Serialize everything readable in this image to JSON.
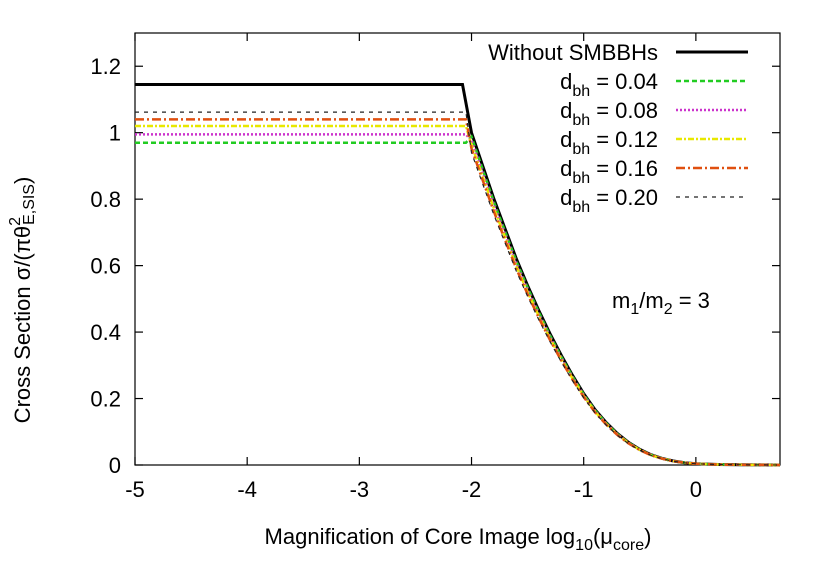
{
  "chart_data": {
    "type": "line",
    "x_axis": {
      "title_main": "Magnification of Core Image log",
      "title_sub": "10",
      "title_paren_open": "(μ",
      "title_sub2": "core",
      "title_paren_close": ")",
      "range": [
        -5,
        0.75
      ],
      "ticks": [
        "-5",
        "-4",
        "-3",
        "-2",
        "-1",
        "0"
      ],
      "tick_values": [
        -5,
        -4,
        -3,
        -2,
        -1,
        0
      ]
    },
    "y_axis": {
      "title_main": "Cross Section σ/(πθ",
      "title_sup": "2",
      "title_sub": "E,SIS",
      "title_close": ")",
      "range": [
        0,
        1.3
      ],
      "ticks": [
        "0",
        "0.2",
        "0.4",
        "0.6",
        "0.8",
        "1",
        "1.2"
      ],
      "tick_values": [
        0,
        0.2,
        0.4,
        0.6,
        0.8,
        1.0,
        1.2
      ]
    },
    "annotation": {
      "text_a": "m",
      "sub_a": "1",
      "text_b": "/m",
      "sub_b": "2",
      "text_c": " = 3"
    },
    "grid": false,
    "legend_position": "top-right",
    "series": [
      {
        "name": "Without SMBBHs",
        "legend_main": "Without SMBBHs",
        "legend_sub": "",
        "legend_value": "",
        "color": "#000000",
        "dash": "",
        "width": 3,
        "plateau": 1.145,
        "break": -2.08
      },
      {
        "name": "d_bh = 0.04",
        "legend_main": "d",
        "legend_sub": "bh",
        "legend_value": " = 0.04",
        "color": "#22cc22",
        "dash": "5,3",
        "width": 2.5,
        "plateau": 0.97,
        "break": -2.05
      },
      {
        "name": "d_bh = 0.08",
        "legend_main": "d",
        "legend_sub": "bh",
        "legend_value": " = 0.08",
        "color": "#cc33cc",
        "dash": "2,2",
        "width": 2.5,
        "plateau": 0.995,
        "break": -2.05
      },
      {
        "name": "d_bh = 0.12",
        "legend_main": "d",
        "legend_sub": "bh",
        "legend_value": " = 0.12",
        "color": "#e8e800",
        "dash": "6,2,2,2",
        "width": 2.5,
        "plateau": 1.02,
        "break": -2.05
      },
      {
        "name": "d_bh = 0.16",
        "legend_main": "d",
        "legend_sub": "bh",
        "legend_value": " = 0.16",
        "color": "#e05010",
        "dash": "9,3,2,3",
        "width": 2.5,
        "plateau": 1.04,
        "break": -2.05
      },
      {
        "name": "d_bh = 0.20",
        "legend_main": "d",
        "legend_sub": "bh",
        "legend_value": " = 0.20",
        "color": "#222222",
        "dash": "4,5",
        "width": 1.2,
        "plateau": 1.062,
        "break": -2.05
      }
    ],
    "decay_curve": {
      "x": [
        -2.0,
        -1.9,
        -1.8,
        -1.7,
        -1.6,
        -1.5,
        -1.4,
        -1.3,
        -1.2,
        -1.1,
        -1.0,
        -0.9,
        -0.8,
        -0.7,
        -0.6,
        -0.5,
        -0.4,
        -0.3,
        -0.2,
        -0.1,
        0.0,
        0.2,
        0.4,
        0.6,
        0.75
      ],
      "y": [
        1.0,
        0.9,
        0.8,
        0.71,
        0.62,
        0.54,
        0.465,
        0.395,
        0.33,
        0.27,
        0.215,
        0.167,
        0.128,
        0.095,
        0.068,
        0.047,
        0.031,
        0.02,
        0.012,
        0.007,
        0.004,
        0.0015,
        0.0006,
        0.0002,
        0.0
      ]
    }
  }
}
